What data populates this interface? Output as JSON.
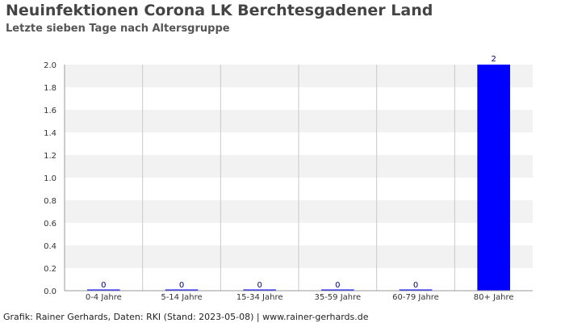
{
  "header": {
    "title": "Neuinfektionen Corona LK Berchtesgadener Land",
    "subtitle": "Letzte sieben Tage nach Altersgruppe"
  },
  "footer": {
    "text": "Grafik: Rainer Gerhards, Daten: RKI (Stand: 2023-05-08) | www.rainer-gerhards.de"
  },
  "colors": {
    "bar": "#0000ff",
    "data_label": "#000080",
    "band": "#f2f2f2",
    "grid": "#c8c8c8"
  },
  "chart_data": {
    "type": "bar",
    "categories": [
      "0-4 Jahre",
      "5-14 Jahre",
      "15-34 Jahre",
      "35-59 Jahre",
      "60-79 Jahre",
      "80+ Jahre"
    ],
    "values": [
      0,
      0,
      0,
      0,
      0,
      2
    ],
    "data_labels": [
      "0",
      "0",
      "0",
      "0",
      "0",
      "2"
    ],
    "title": "Neuinfektionen Corona LK Berchtesgadener Land",
    "subtitle": "Letzte sieben Tage nach Altersgruppe",
    "xlabel": "",
    "ylabel": "",
    "ylim": [
      0,
      2
    ],
    "yticks": [
      "0.0",
      "0.2",
      "0.4",
      "0.6",
      "0.8",
      "1.0",
      "1.2",
      "1.4",
      "1.6",
      "1.8",
      "2.0"
    ],
    "grid": true,
    "legend": "none"
  }
}
